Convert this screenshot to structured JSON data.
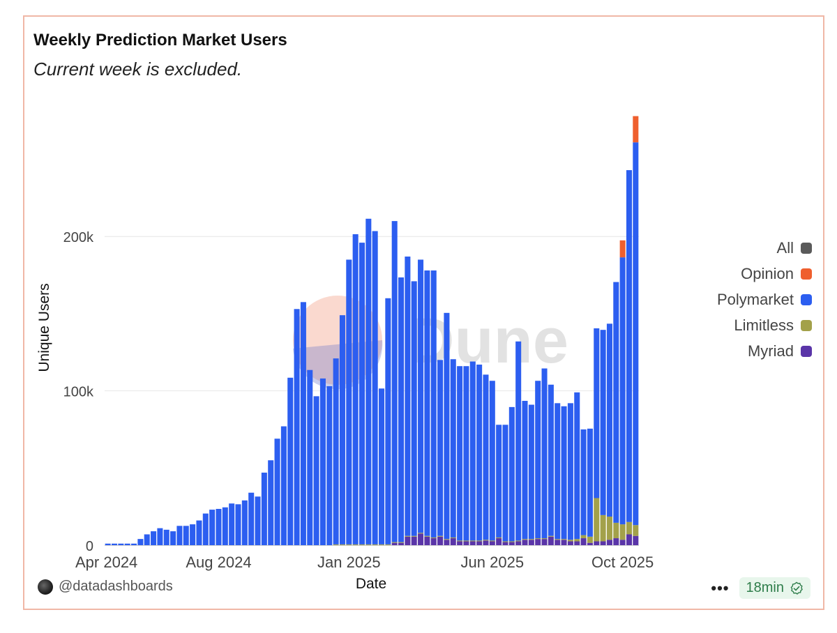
{
  "header": {
    "title": "Weekly Prediction Market Users",
    "subtitle": "Current week is excluded."
  },
  "watermark": "Dune",
  "footer": {
    "author": "@datadashboards",
    "more": "•••",
    "refresh_label": "18min"
  },
  "colors": {
    "All": "#5a5a5a",
    "Opinion": "#ef5f2e",
    "Polymarket": "#2c5ef0",
    "Limitless": "#a3a14a",
    "Myriad": "#5a35a8",
    "grid": "#e6e6e6",
    "axis_text": "#444444"
  },
  "legend": [
    {
      "label": "All",
      "color": "#5a5a5a"
    },
    {
      "label": "Opinion",
      "color": "#ef5f2e"
    },
    {
      "label": "Polymarket",
      "color": "#2c5ef0"
    },
    {
      "label": "Limitless",
      "color": "#a3a14a"
    },
    {
      "label": "Myriad",
      "color": "#5a35a8"
    }
  ],
  "chart_data": {
    "type": "bar",
    "stacked": true,
    "title": "Weekly Prediction Market Users",
    "subtitle": "Current week is excluded.",
    "xlabel": "Date",
    "ylabel": "Unique Users",
    "ylim": [
      0,
      290000
    ],
    "yticks": [
      {
        "value": 0,
        "label": "0"
      },
      {
        "value": 100000,
        "label": "100k"
      },
      {
        "value": 200000,
        "label": "200k"
      }
    ],
    "xticks": [
      {
        "index": 0,
        "label": "Apr 2024"
      },
      {
        "index": 17,
        "label": "Aug 2024"
      },
      {
        "index": 37,
        "label": "Jan 2025"
      },
      {
        "index": 59,
        "label": "Jun 2025"
      },
      {
        "index": 79,
        "label": "Oct 2025"
      }
    ],
    "grid": true,
    "legend_position": "right",
    "series": [
      {
        "name": "Polymarket",
        "values": [
          1000,
          1000,
          1000,
          1000,
          1000,
          4000,
          7000,
          9000,
          11000,
          10000,
          9000,
          12500,
          12500,
          13500,
          16000,
          20500,
          23000,
          23500,
          24500,
          27000,
          26500,
          29000,
          34000,
          31500,
          47000,
          55000,
          69000,
          77000,
          108500,
          153000,
          157500,
          113500,
          96500,
          108000,
          103000,
          120500,
          148500,
          184500,
          201000,
          195500,
          211000,
          203000,
          101000,
          159500,
          208000,
          171500,
          181000,
          165000,
          177000,
          172000,
          173000,
          114000,
          146500,
          115500,
          113000,
          113000,
          116000,
          114000,
          107000,
          103500,
          73000,
          75500,
          87000,
          129000,
          89500,
          87000,
          102000,
          110000,
          98000,
          88000,
          86000,
          88500,
          95000,
          68500,
          70000,
          110000,
          120000,
          125000,
          156000,
          173000,
          228000,
          248000
        ]
      },
      {
        "name": "Limitless",
        "values": [
          0,
          0,
          0,
          0,
          0,
          0,
          0,
          0,
          0,
          0,
          0,
          0,
          0,
          0,
          0,
          0,
          0,
          0,
          0,
          0,
          0,
          0,
          0,
          0,
          0,
          0,
          0,
          0,
          0,
          0,
          0,
          0,
          0,
          0,
          0,
          500,
          500,
          500,
          500,
          500,
          500,
          500,
          500,
          500,
          500,
          500,
          500,
          500,
          500,
          500,
          500,
          500,
          500,
          500,
          500,
          500,
          500,
          500,
          500,
          500,
          500,
          500,
          500,
          500,
          500,
          500,
          500,
          500,
          500,
          500,
          500,
          1000,
          1500,
          2000,
          4000,
          28000,
          17000,
          15000,
          10000,
          10000,
          8000,
          7000
        ]
      },
      {
        "name": "Myriad",
        "values": [
          0,
          0,
          0,
          0,
          0,
          0,
          0,
          0,
          0,
          0,
          0,
          0,
          0,
          0,
          0,
          0,
          0,
          0,
          0,
          0,
          0,
          0,
          0,
          0,
          0,
          0,
          0,
          0,
          0,
          0,
          0,
          0,
          0,
          0,
          0,
          0,
          0,
          0,
          0,
          0,
          0,
          0,
          0,
          0,
          1500,
          1500,
          5500,
          5500,
          7500,
          5500,
          4500,
          5500,
          3500,
          4500,
          2500,
          2500,
          2500,
          2500,
          3000,
          2500,
          4500,
          2000,
          2000,
          2500,
          3500,
          3500,
          4000,
          4000,
          5500,
          3500,
          3500,
          2500,
          2500,
          4500,
          1500,
          2500,
          2500,
          3500,
          4500,
          3500,
          7000,
          6000
        ]
      },
      {
        "name": "Opinion",
        "values": [
          0,
          0,
          0,
          0,
          0,
          0,
          0,
          0,
          0,
          0,
          0,
          0,
          0,
          0,
          0,
          0,
          0,
          0,
          0,
          0,
          0,
          0,
          0,
          0,
          0,
          0,
          0,
          0,
          0,
          0,
          0,
          0,
          0,
          0,
          0,
          0,
          0,
          0,
          0,
          0,
          0,
          0,
          0,
          0,
          0,
          0,
          0,
          0,
          0,
          0,
          0,
          0,
          0,
          0,
          0,
          0,
          0,
          0,
          0,
          0,
          0,
          0,
          0,
          0,
          0,
          0,
          0,
          0,
          0,
          0,
          0,
          0,
          0,
          0,
          0,
          0,
          0,
          0,
          0,
          11000,
          0,
          17000
        ]
      }
    ],
    "stack_order": [
      "Myriad",
      "Limitless",
      "Polymarket",
      "Opinion"
    ]
  }
}
